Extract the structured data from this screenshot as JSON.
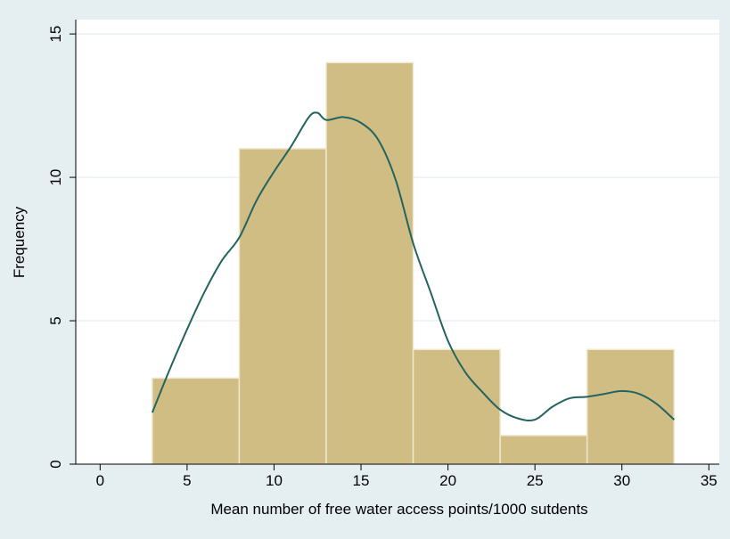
{
  "colors": {
    "outer_background": "#e5eef0",
    "plot_background": "#ffffff",
    "grid": "#e3ecef",
    "bar_fill": "#cfbd84",
    "bar_stroke": "#efe8cf",
    "density_line": "#24635f",
    "axis": "#000000"
  },
  "chart_data": {
    "type": "bar",
    "xlabel": "Mean number of free water access points/1000 sutdents",
    "ylabel": "Frequency",
    "xlim": [
      -1.4,
      35.6
    ],
    "ylim": [
      0,
      15.5
    ],
    "x_ticks": [
      0,
      5,
      10,
      15,
      20,
      25,
      30,
      35
    ],
    "y_ticks": [
      0,
      5,
      10,
      15
    ],
    "grid": true,
    "legend": "none",
    "bins": [
      {
        "start": 3,
        "end": 8,
        "value": 3
      },
      {
        "start": 8,
        "end": 13,
        "value": 11
      },
      {
        "start": 13,
        "end": 18,
        "value": 14
      },
      {
        "start": 18,
        "end": 23,
        "value": 4
      },
      {
        "start": 23,
        "end": 28,
        "value": 1
      },
      {
        "start": 28,
        "end": 33,
        "value": 4
      }
    ],
    "density_curve": [
      [
        3,
        1.8
      ],
      [
        4,
        3.3
      ],
      [
        5,
        4.7
      ],
      [
        6,
        6.0
      ],
      [
        7,
        7.1
      ],
      [
        8,
        7.9
      ],
      [
        9,
        9.2
      ],
      [
        10,
        10.2
      ],
      [
        11,
        11.1
      ],
      [
        12,
        12.1
      ],
      [
        12.5,
        12.25
      ],
      [
        13,
        12.0
      ],
      [
        14,
        12.1
      ],
      [
        15,
        11.9
      ],
      [
        16,
        11.3
      ],
      [
        17,
        9.9
      ],
      [
        18,
        7.7
      ],
      [
        19,
        6.0
      ],
      [
        20,
        4.3
      ],
      [
        21,
        3.2
      ],
      [
        22,
        2.5
      ],
      [
        23,
        1.9
      ],
      [
        24,
        1.6
      ],
      [
        25,
        1.55
      ],
      [
        26,
        2.0
      ],
      [
        27,
        2.3
      ],
      [
        28,
        2.35
      ],
      [
        29,
        2.45
      ],
      [
        30,
        2.55
      ],
      [
        31,
        2.45
      ],
      [
        32,
        2.1
      ],
      [
        33,
        1.55
      ]
    ]
  }
}
